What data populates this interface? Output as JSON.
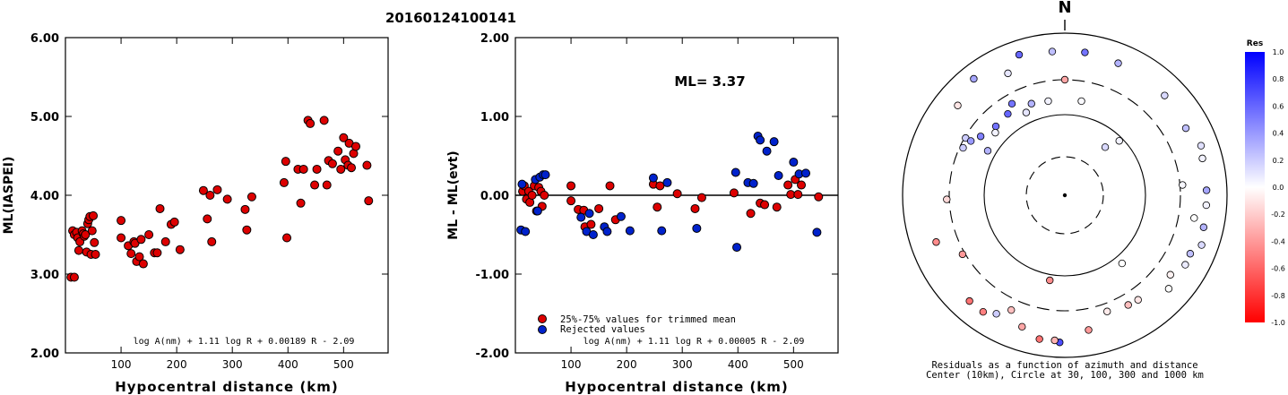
{
  "title": "20160124100141",
  "chart_data": [
    {
      "type": "scatter",
      "xlabel": "Hypocentral distance (km)",
      "ylabel": "ML(IASPEI)",
      "xlim": [
        0,
        580
      ],
      "ylim": [
        2.0,
        6.0
      ],
      "xticks": [
        100,
        200,
        300,
        400,
        500
      ],
      "yticks": [
        "2.00",
        "3.00",
        "4.00",
        "5.00",
        "6.00"
      ],
      "yticks_values": [
        2,
        3,
        4,
        5,
        6
      ],
      "formula": "log A(nm) + 1.11 log R + 0.00189 R - 2.09",
      "marker_color": "#dd0000",
      "points": [
        [
          10,
          2.96
        ],
        [
          16,
          2.96
        ],
        [
          13,
          3.55
        ],
        [
          16,
          3.5
        ],
        [
          20,
          3.53
        ],
        [
          22,
          3.46
        ],
        [
          24,
          3.3
        ],
        [
          26,
          3.41
        ],
        [
          30,
          3.55
        ],
        [
          32,
          3.51
        ],
        [
          34,
          3.48
        ],
        [
          36,
          3.5
        ],
        [
          38,
          3.28
        ],
        [
          40,
          3.64
        ],
        [
          42,
          3.69
        ],
        [
          44,
          3.73
        ],
        [
          46,
          3.25
        ],
        [
          48,
          3.55
        ],
        [
          50,
          3.74
        ],
        [
          52,
          3.4
        ],
        [
          54,
          3.25
        ],
        [
          100,
          3.68
        ],
        [
          100,
          3.46
        ],
        [
          113,
          3.36
        ],
        [
          118,
          3.26
        ],
        [
          123,
          3.41
        ],
        [
          125,
          3.39
        ],
        [
          128,
          3.16
        ],
        [
          133,
          3.22
        ],
        [
          136,
          3.44
        ],
        [
          140,
          3.13
        ],
        [
          150,
          3.5
        ],
        [
          160,
          3.27
        ],
        [
          165,
          3.27
        ],
        [
          170,
          3.83
        ],
        [
          180,
          3.41
        ],
        [
          190,
          3.63
        ],
        [
          196,
          3.66
        ],
        [
          206,
          3.31
        ],
        [
          248,
          4.06
        ],
        [
          255,
          3.7
        ],
        [
          260,
          4.0
        ],
        [
          263,
          3.41
        ],
        [
          273,
          4.07
        ],
        [
          291,
          3.95
        ],
        [
          323,
          3.82
        ],
        [
          326,
          3.56
        ],
        [
          335,
          3.98
        ],
        [
          393,
          4.16
        ],
        [
          396,
          4.43
        ],
        [
          398,
          3.46
        ],
        [
          418,
          4.33
        ],
        [
          423,
          3.9
        ],
        [
          428,
          4.33
        ],
        [
          436,
          4.95
        ],
        [
          440,
          4.91
        ],
        [
          448,
          4.13
        ],
        [
          452,
          4.33
        ],
        [
          465,
          4.95
        ],
        [
          470,
          4.13
        ],
        [
          473,
          4.44
        ],
        [
          480,
          4.4
        ],
        [
          490,
          4.56
        ],
        [
          495,
          4.33
        ],
        [
          500,
          4.73
        ],
        [
          503,
          4.45
        ],
        [
          508,
          4.38
        ],
        [
          510,
          4.66
        ],
        [
          514,
          4.35
        ],
        [
          518,
          4.53
        ],
        [
          522,
          4.62
        ],
        [
          542,
          4.38
        ],
        [
          545,
          3.93
        ]
      ]
    },
    {
      "type": "scatter",
      "xlabel": "Hypocentral distance (km)",
      "ylabel": "ML - ML(evt)",
      "xlim": [
        0,
        580
      ],
      "ylim": [
        -2.0,
        2.0
      ],
      "xticks": [
        100,
        200,
        300,
        400,
        500
      ],
      "yticks": [
        "-2.00",
        "-1.00",
        "0.00",
        "1.00",
        "2.00"
      ],
      "yticks_values": [
        -2,
        -1,
        0,
        1,
        2
      ],
      "annotation": "ML= 3.37",
      "formula": "log A(nm) + 1.11 log R + 0.00005 R - 2.09",
      "legend_position": "bottom-left",
      "series": [
        {
          "name": "25%-75% values for trimmed mean",
          "color": "#dd0000",
          "points": [
            [
              13,
              0.05
            ],
            [
              16,
              0.12
            ],
            [
              20,
              -0.05
            ],
            [
              24,
              0.05
            ],
            [
              26,
              -0.09
            ],
            [
              30,
              0.0
            ],
            [
              34,
              0.12
            ],
            [
              38,
              -0.2
            ],
            [
              42,
              0.1
            ],
            [
              46,
              0.05
            ],
            [
              48,
              -0.14
            ],
            [
              52,
              0.0
            ],
            [
              100,
              -0.07
            ],
            [
              100,
              0.12
            ],
            [
              113,
              -0.18
            ],
            [
              123,
              -0.19
            ],
            [
              125,
              -0.4
            ],
            [
              136,
              -0.37
            ],
            [
              150,
              -0.17
            ],
            [
              170,
              0.12
            ],
            [
              180,
              -0.31
            ],
            [
              248,
              0.14
            ],
            [
              255,
              -0.15
            ],
            [
              260,
              0.12
            ],
            [
              291,
              0.02
            ],
            [
              323,
              -0.17
            ],
            [
              335,
              -0.03
            ],
            [
              393,
              0.03
            ],
            [
              423,
              -0.23
            ],
            [
              440,
              -0.1
            ],
            [
              448,
              -0.12
            ],
            [
              470,
              -0.15
            ],
            [
              490,
              0.13
            ],
            [
              495,
              0.01
            ],
            [
              503,
              0.2
            ],
            [
              508,
              0.01
            ],
            [
              514,
              0.13
            ],
            [
              545,
              -0.02
            ]
          ]
        },
        {
          "name": "Rejected values",
          "color": "#0022cc",
          "points": [
            [
              10,
              -0.44
            ],
            [
              12,
              0.14
            ],
            [
              18,
              -0.46
            ],
            [
              36,
              0.2
            ],
            [
              40,
              -0.2
            ],
            [
              44,
              0.23
            ],
            [
              50,
              0.26
            ],
            [
              54,
              0.26
            ],
            [
              118,
              -0.28
            ],
            [
              128,
              -0.46
            ],
            [
              133,
              -0.23
            ],
            [
              140,
              -0.5
            ],
            [
              160,
              -0.4
            ],
            [
              165,
              -0.46
            ],
            [
              190,
              -0.27
            ],
            [
              206,
              -0.45
            ],
            [
              248,
              0.22
            ],
            [
              263,
              -0.45
            ],
            [
              273,
              0.16
            ],
            [
              326,
              -0.42
            ],
            [
              396,
              0.29
            ],
            [
              398,
              -0.66
            ],
            [
              418,
              0.16
            ],
            [
              428,
              0.15
            ],
            [
              436,
              0.75
            ],
            [
              440,
              0.7
            ],
            [
              452,
              0.56
            ],
            [
              465,
              0.68
            ],
            [
              473,
              0.25
            ],
            [
              500,
              0.42
            ],
            [
              510,
              0.27
            ],
            [
              522,
              0.28
            ],
            [
              542,
              -0.47
            ]
          ]
        }
      ]
    },
    {
      "type": "polar-scatter",
      "north_label": "N",
      "caption_line1": "Residuals as a function of azimuth and distance",
      "caption_line2": "Center (10km), Circle at 30, 100, 300 and 1000 km",
      "rings_km": [
        30,
        100,
        300,
        1000
      ],
      "colorbar_title": "Res",
      "colorbar_ticks": [
        "1.0",
        "0.8",
        "0.6",
        "0.4",
        "0.2",
        "0.0",
        "-0.2",
        "-0.4",
        "-0.6",
        "-0.8",
        "-1.0"
      ],
      "colorbar_ticks_values": [
        1.0,
        0.8,
        0.6,
        0.4,
        0.2,
        0.0,
        -0.2,
        -0.4,
        -0.6,
        -0.8,
        -1.0
      ],
      "points": [
        {
          "az": 342,
          "dist": 690,
          "res": 0.6
        },
        {
          "az": 355,
          "dist": 630,
          "res": 0.25
        },
        {
          "az": 8,
          "dist": 630,
          "res": 0.55
        },
        {
          "az": 22,
          "dist": 600,
          "res": 0.3
        },
        {
          "az": 45,
          "dist": 580,
          "res": 0.15
        },
        {
          "az": 61,
          "dist": 540,
          "res": 0.25
        },
        {
          "az": 70,
          "dist": 640,
          "res": 0.12
        },
        {
          "az": 75,
          "dist": 600,
          "res": 0.05
        },
        {
          "az": 85,
          "dist": 320,
          "res": 0.03
        },
        {
          "az": 88,
          "dist": 590,
          "res": 0.35
        },
        {
          "az": 94,
          "dist": 590,
          "res": 0.05
        },
        {
          "az": 100,
          "dist": 450,
          "res": 0.0
        },
        {
          "az": 103,
          "dist": 600,
          "res": 0.3
        },
        {
          "az": 110,
          "dist": 650,
          "res": 0.15
        },
        {
          "az": 115,
          "dist": 540,
          "res": 0.25
        },
        {
          "az": 120,
          "dist": 550,
          "res": 0.08
        },
        {
          "az": 127,
          "dist": 460,
          "res": -0.05
        },
        {
          "az": 132,
          "dist": 560,
          "res": 0.0
        },
        {
          "az": 145,
          "dist": 410,
          "res": -0.1
        },
        {
          "az": 150,
          "dist": 400,
          "res": -0.25
        },
        {
          "az": 160,
          "dist": 370,
          "res": -0.08
        },
        {
          "az": 170,
          "dist": 520,
          "res": -0.4
        },
        {
          "az": 182,
          "dist": 680,
          "res": 0.7
        },
        {
          "az": 184,
          "dist": 650,
          "res": -0.3
        },
        {
          "az": 190,
          "dist": 660,
          "res": -0.55
        },
        {
          "az": 198,
          "dist": 540,
          "res": -0.35
        },
        {
          "az": 205,
          "dist": 400,
          "res": -0.25
        },
        {
          "az": 210,
          "dist": 520,
          "res": 0.2
        },
        {
          "az": 215,
          "dist": 600,
          "res": -0.5
        },
        {
          "az": 222,
          "dist": 600,
          "res": -0.55
        },
        {
          "az": 240,
          "dist": 320,
          "res": -0.4
        },
        {
          "az": 250,
          "dist": 520,
          "res": -0.45
        },
        {
          "az": 268,
          "dist": 320,
          "res": -0.15
        },
        {
          "az": 300,
          "dist": 290,
          "res": 0.2
        },
        {
          "az": 310,
          "dist": 560,
          "res": -0.1
        },
        {
          "az": 322,
          "dist": 690,
          "res": 0.35
        },
        {
          "az": 335,
          "dist": 490,
          "res": 0.1
        },
        {
          "az": 0,
          "dist": 300,
          "res": -0.35
        },
        {
          "az": 190,
          "dist": 120,
          "res": -0.45
        },
        {
          "az": 315,
          "dist": 170,
          "res": 0.55
        },
        {
          "az": 305,
          "dist": 200,
          "res": 0.5
        },
        {
          "az": 300,
          "dist": 240,
          "res": 0.4
        },
        {
          "az": 325,
          "dist": 180,
          "res": 0.6
        },
        {
          "az": 330,
          "dist": 220,
          "res": 0.55
        },
        {
          "az": 340,
          "dist": 170,
          "res": 0.3
        },
        {
          "az": 350,
          "dist": 160,
          "res": 0.05
        },
        {
          "az": 335,
          "dist": 140,
          "res": 0.1
        },
        {
          "az": 295,
          "dist": 270,
          "res": 0.2
        },
        {
          "az": 10,
          "dist": 160,
          "res": 0.02
        },
        {
          "az": 40,
          "dist": 60,
          "res": 0.15
        },
        {
          "az": 45,
          "dist": 90,
          "res": 0.05
        },
        {
          "az": 140,
          "dist": 130,
          "res": 0.0
        },
        {
          "az": 300,
          "dist": 130,
          "res": 0.3
        },
        {
          "az": 312,
          "dist": 150,
          "res": 0.05
        }
      ]
    }
  ]
}
